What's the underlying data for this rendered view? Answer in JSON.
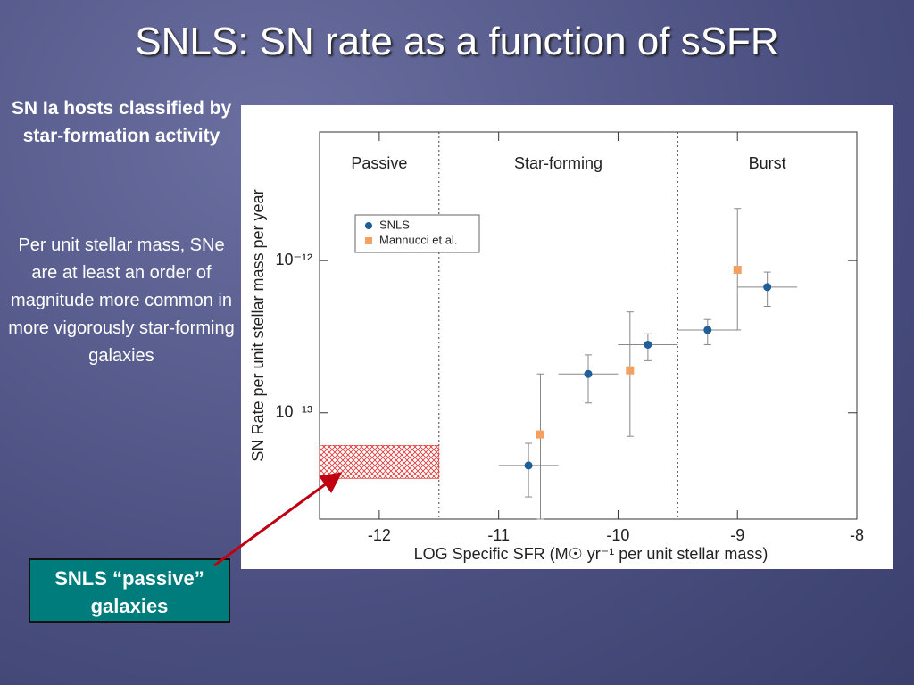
{
  "slide": {
    "title": "SNLS: SN rate as a function of sSFR",
    "subtitle": "SN Ia hosts classified by star-formation activity",
    "body": "Per unit stellar mass, SNe are at least an order of magnitude more common in more vigorously star-forming galaxies",
    "callout": "SNLS “passive” galaxies"
  },
  "chart_data": {
    "type": "scatter",
    "xlabel": "LOG Specific SFR (M☉ yr⁻¹ per unit stellar mass)",
    "ylabel": "SN Rate per unit stellar mass per year",
    "xlim": [
      -12.5,
      -8
    ],
    "ylim": [
      2e-14,
      7e-12
    ],
    "ylog": true,
    "xticks": [
      -12,
      -11,
      -10,
      -9,
      -8
    ],
    "yticks": [
      {
        "value": 1e-13,
        "label": "10⁻¹³"
      },
      {
        "value": 1e-12,
        "label": "10⁻¹²"
      }
    ],
    "legend": "upper left",
    "regions": [
      "Passive",
      "Star-forming",
      "Burst"
    ],
    "dividers": [
      -11.5,
      -9.5
    ],
    "band": {
      "xlim": [
        -12.5,
        -11.5
      ],
      "ylim": [
        3.7e-14,
        6.1e-14
      ],
      "color": "#e03030"
    },
    "series": [
      {
        "name": "SNLS",
        "color": "#1f5f99",
        "marker": "circle",
        "x": [
          -10.75,
          -10.25,
          -9.75,
          -9.25,
          -8.75
        ],
        "values": [
          4.5e-14,
          1.8e-13,
          2.8e-13,
          3.5e-13,
          6.7e-13
        ],
        "y_low": [
          2.8e-14,
          1.16e-13,
          2.2e-13,
          2.8e-13,
          5e-13
        ],
        "y_high": [
          6.3e-14,
          2.4e-13,
          3.3e-13,
          4.1e-13,
          8.4e-13
        ],
        "xerr": [
          0.25,
          0.25,
          0.25,
          0.25,
          0.25
        ]
      },
      {
        "name": "Mannucci et al.",
        "color": "#f4a060",
        "marker": "square",
        "x": [
          -10.65,
          -9.9,
          -9.0
        ],
        "values": [
          7.2e-14,
          1.9e-13,
          8.7e-13
        ],
        "y_low": [
          2e-14,
          7e-14,
          3.5e-13
        ],
        "y_high": [
          1.8e-13,
          4.6e-13,
          2.2e-12
        ],
        "xerr": [
          null,
          null,
          null
        ]
      }
    ]
  }
}
